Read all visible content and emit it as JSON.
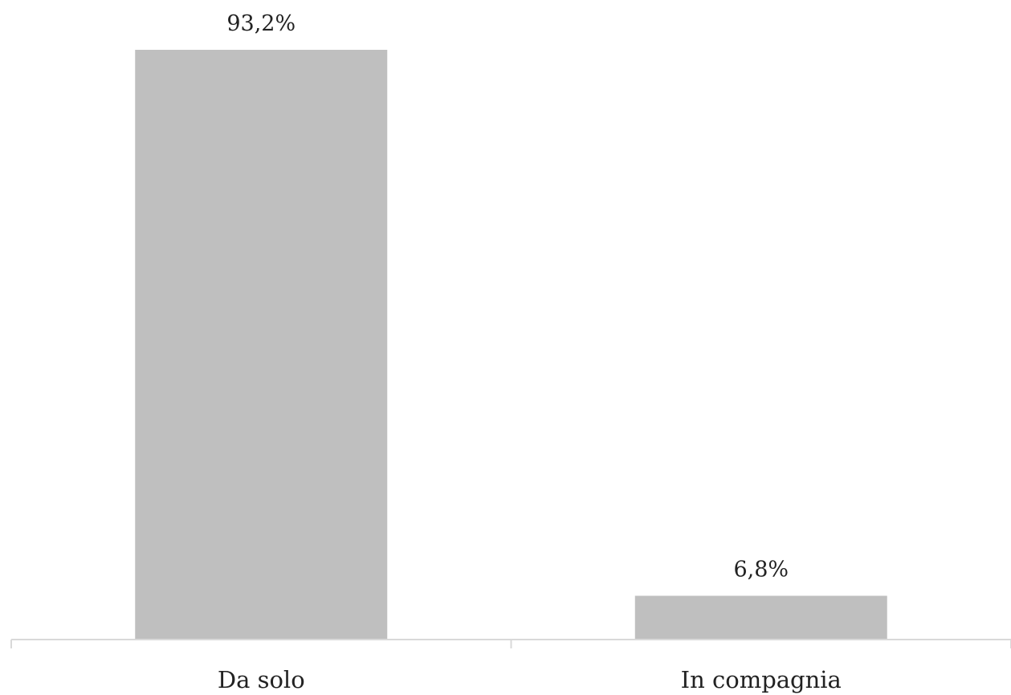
{
  "chart_data": {
    "type": "bar",
    "categories": [
      "Da solo",
      "In compagnia"
    ],
    "values": [
      93.2,
      6.8
    ],
    "data_labels": [
      "93,2%",
      "6,8%"
    ],
    "ylim": [
      0,
      100
    ],
    "grid": false,
    "legend": "none",
    "colors": {
      "bar": "#bfbfbf",
      "axis": "#d9d9d9",
      "text": "#222222"
    }
  }
}
